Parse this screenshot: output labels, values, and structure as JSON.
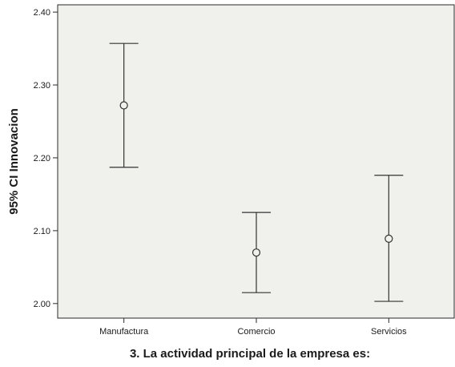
{
  "chart_data": {
    "type": "errorbar",
    "title": "",
    "xlabel": "3. La actividad principal de la empresa es:",
    "ylabel": "95% CI Innovacion",
    "categories": [
      "Manufactura",
      "Comercio",
      "Servicios"
    ],
    "series": [
      {
        "means": [
          2.272,
          2.07,
          2.089
        ],
        "lower": [
          2.187,
          2.015,
          2.003
        ],
        "upper": [
          2.357,
          2.125,
          2.176
        ]
      }
    ],
    "ylim": [
      1.98,
      2.41
    ],
    "yticks": [
      "2.00",
      "2.10",
      "2.20",
      "2.30",
      "2.40"
    ],
    "ytick_values": [
      2.0,
      2.1,
      2.2,
      2.3,
      2.4
    ],
    "grid": false,
    "legend": "none",
    "colors": {
      "plot_background": "#f0f0ec",
      "frame": "#2a2a2a",
      "marks": "#333333"
    }
  }
}
